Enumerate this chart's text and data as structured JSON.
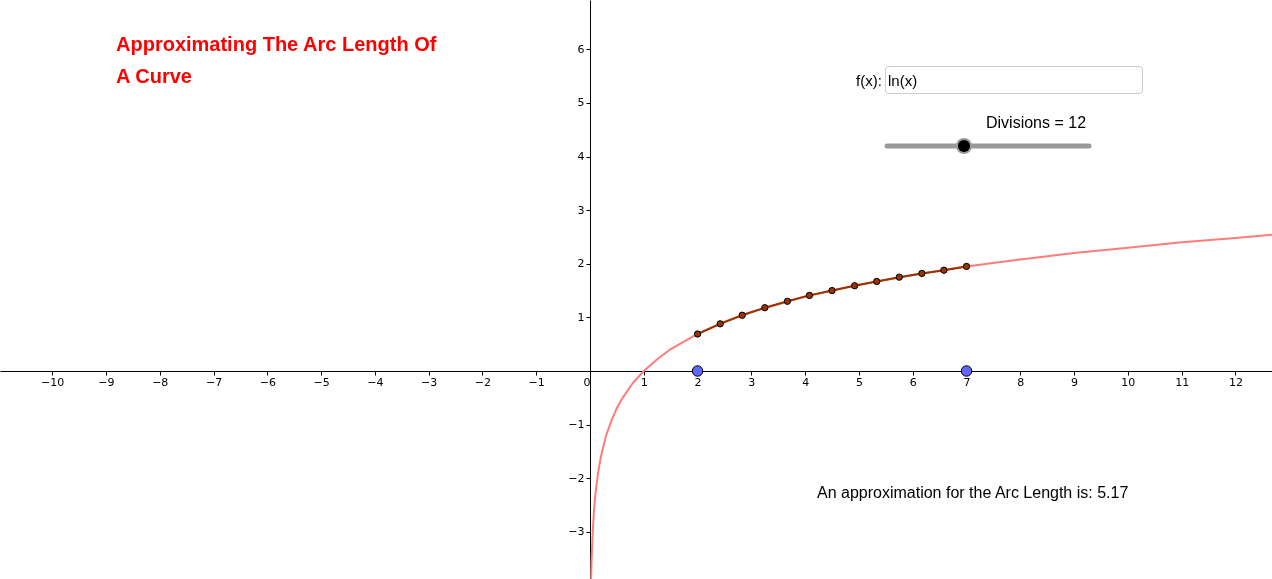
{
  "chart_data": {
    "type": "line",
    "title": "Approximating The Arc Length Of A Curve",
    "xlim": [
      -10.97,
      12.68
    ],
    "ylim": [
      -3.88,
      6.92
    ],
    "xticks": [
      -10,
      -9,
      -8,
      -7,
      -6,
      -5,
      -4,
      -3,
      -2,
      -1,
      0,
      1,
      2,
      3,
      4,
      5,
      6,
      7,
      8,
      9,
      10,
      11,
      12
    ],
    "yticks": [
      -3,
      -2,
      -1,
      1,
      2,
      3,
      4,
      5,
      6
    ],
    "grid": false,
    "series": [
      {
        "color": "#ff7c7c",
        "marker": "none",
        "x": [
          0.021,
          0.03,
          0.05,
          0.075,
          0.1,
          0.15,
          0.2,
          0.3,
          0.4,
          0.5,
          0.6,
          0.8,
          1,
          1.25,
          1.5,
          2,
          2.5,
          3,
          4,
          5,
          6,
          7,
          8,
          9,
          10,
          11,
          12,
          12.68
        ],
        "values": [
          -3.86,
          -3.51,
          -3.0,
          -2.59,
          -2.3,
          -1.9,
          -1.61,
          -1.2,
          -0.92,
          -0.69,
          -0.51,
          -0.22,
          0,
          0.22,
          0.41,
          0.69,
          0.92,
          1.1,
          1.39,
          1.61,
          1.79,
          1.95,
          2.08,
          2.2,
          2.3,
          2.4,
          2.48,
          2.54
        ]
      },
      {
        "color": "#993300",
        "marker": "circle",
        "x": [
          2,
          2.42,
          2.83,
          3.25,
          3.67,
          4.08,
          4.5,
          4.92,
          5.33,
          5.75,
          6.17,
          6.58,
          7
        ],
        "values": [
          0.69,
          0.88,
          1.04,
          1.18,
          1.3,
          1.41,
          1.5,
          1.59,
          1.67,
          1.75,
          1.82,
          1.88,
          1.95
        ]
      },
      {
        "type": "scatter",
        "color": "#6464ff",
        "marker": "circle",
        "x": [
          2,
          7
        ],
        "values": [
          0,
          0
        ]
      }
    ],
    "annotations": [
      "f(x):",
      "ln(x)",
      "Divisions = 12",
      "An approximation for the Arc Length is: 5.17"
    ]
  }
}
